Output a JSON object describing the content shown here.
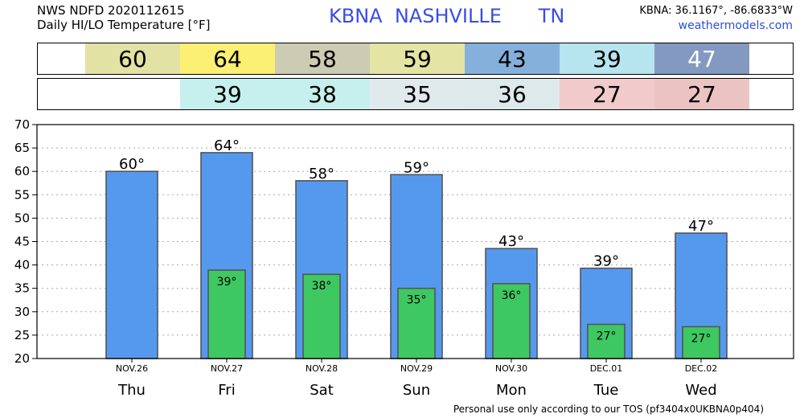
{
  "header": {
    "title_line1": "NWS NDFD 2020112615",
    "title_line2": "Daily HI/LO Temperature [°F]",
    "station": "KBNA  NASHVILLE      TN",
    "coords": "KBNA: 36.1167°, -86.6833°W",
    "site": "weathermodels.com"
  },
  "footer": "Personal use only according to our TOS (pf3404x0UKBNA0p404)",
  "hi_strip": [
    {
      "value": "60",
      "color": "#e2e2a4"
    },
    {
      "value": "64",
      "color": "#fbef74"
    },
    {
      "value": "58",
      "color": "#cccbb3"
    },
    {
      "value": "59",
      "color": "#e4e4a4"
    },
    {
      "value": "43",
      "color": "#86b0dc"
    },
    {
      "value": "39",
      "color": "#b6e4ef"
    },
    {
      "value": "47",
      "color": "#8499c2",
      "text_color": "#ffffff"
    }
  ],
  "lo_strip": [
    {
      "value": "",
      "color": "#ffffff"
    },
    {
      "value": "39",
      "color": "#c6f0ee"
    },
    {
      "value": "38",
      "color": "#c6f0ee"
    },
    {
      "value": "35",
      "color": "#e0eaed"
    },
    {
      "value": "36",
      "color": "#dde9ea"
    },
    {
      "value": "27",
      "color": "#f1cacb"
    },
    {
      "value": "27",
      "color": "#ebc3c3"
    }
  ],
  "chart_data": {
    "type": "bar",
    "dates": [
      "NOV.26",
      "NOV.27",
      "NOV.28",
      "NOV.29",
      "NOV.30",
      "DEC.01",
      "DEC.02"
    ],
    "days": [
      "Thu",
      "Fri",
      "Sat",
      "Sun",
      "Mon",
      "Tue",
      "Wed"
    ],
    "series": [
      {
        "name": "HI",
        "values": [
          60,
          64,
          58,
          59.3,
          43.5,
          39.3,
          46.8
        ],
        "labels": [
          "60°",
          "64°",
          "58°",
          "59°",
          "43°",
          "39°",
          "47°"
        ],
        "color": "#5599ee"
      },
      {
        "name": "LO",
        "values": [
          null,
          38.9,
          38,
          35,
          36,
          27.3,
          26.8
        ],
        "labels": [
          "",
          "39°",
          "38°",
          "35°",
          "36°",
          "27°",
          "27°"
        ],
        "color": "#3ec862"
      }
    ],
    "ylim": [
      20,
      70
    ],
    "yticks": [
      20,
      25,
      30,
      35,
      40,
      45,
      50,
      55,
      60,
      65,
      70
    ],
    "grid": true
  }
}
